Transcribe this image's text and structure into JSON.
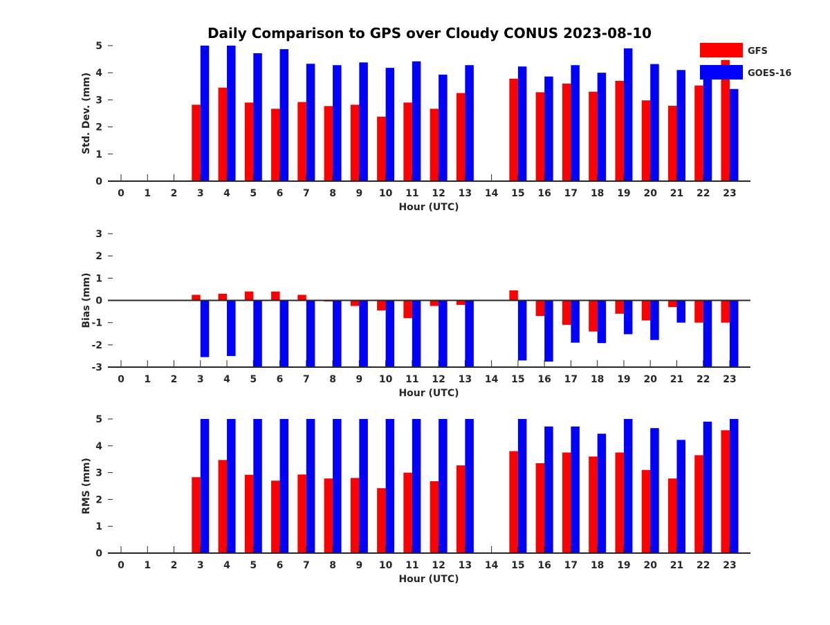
{
  "title": "Daily Comparison to GPS over Cloudy CONUS 2023-08-10",
  "legend": {
    "placement": "top-right",
    "entries": [
      {
        "name": "GFS",
        "color": "#ff0000"
      },
      {
        "name": "GOES-16",
        "color": "#0000ff"
      }
    ]
  },
  "chart_data": [
    {
      "type": "bar",
      "xlabel": "Hour (UTC)",
      "ylabel": "Std. Dev. (mm)",
      "ylim": [
        0,
        5
      ],
      "yticks": [
        0,
        1,
        2,
        3,
        4,
        5
      ],
      "categories": [
        "0",
        "1",
        "2",
        "3",
        "4",
        "5",
        "6",
        "7",
        "8",
        "9",
        "10",
        "11",
        "12",
        "13",
        "14",
        "15",
        "16",
        "17",
        "18",
        "19",
        "20",
        "21",
        "22",
        "23"
      ],
      "series": [
        {
          "name": "GFS",
          "color": "#ff0000",
          "values": [
            null,
            null,
            null,
            2.82,
            3.45,
            2.9,
            2.67,
            2.92,
            2.77,
            2.82,
            2.38,
            2.9,
            2.67,
            3.25,
            null,
            3.78,
            3.28,
            3.6,
            3.3,
            3.7,
            2.98,
            2.78,
            3.53,
            4.47
          ]
        },
        {
          "name": "GOES-16",
          "color": "#0000ff",
          "values": [
            null,
            null,
            null,
            5.0,
            5.0,
            4.72,
            4.87,
            4.33,
            4.28,
            4.38,
            4.18,
            4.42,
            3.93,
            4.28,
            null,
            4.23,
            3.86,
            4.28,
            4.0,
            4.9,
            4.32,
            4.1,
            3.9,
            3.4
          ]
        }
      ]
    },
    {
      "type": "bar",
      "xlabel": "Hour (UTC)",
      "ylabel": "Bias (mm)",
      "ylim": [
        -3,
        3
      ],
      "yticks": [
        -3,
        -2,
        -1,
        0,
        1,
        2,
        3
      ],
      "categories": [
        "0",
        "1",
        "2",
        "3",
        "4",
        "5",
        "6",
        "7",
        "8",
        "9",
        "10",
        "11",
        "12",
        "13",
        "14",
        "15",
        "16",
        "17",
        "18",
        "19",
        "20",
        "21",
        "22",
        "23"
      ],
      "series": [
        {
          "name": "GFS",
          "color": "#ff0000",
          "values": [
            null,
            null,
            null,
            0.25,
            0.3,
            0.4,
            0.4,
            0.25,
            -0.05,
            -0.25,
            -0.45,
            -0.8,
            -0.25,
            -0.2,
            null,
            0.45,
            -0.7,
            -1.1,
            -1.4,
            -0.6,
            -0.9,
            -0.3,
            -1.0,
            -1.0
          ]
        },
        {
          "name": "GOES-16",
          "color": "#0000ff",
          "values": [
            null,
            null,
            null,
            -2.55,
            -2.5,
            -3.0,
            -3.0,
            -3.0,
            -3.0,
            -3.0,
            -3.0,
            -3.0,
            -3.0,
            -3.0,
            null,
            -2.7,
            -2.75,
            -1.9,
            -1.92,
            -1.52,
            -1.78,
            -1.0,
            -2.98,
            -3.0
          ]
        }
      ]
    },
    {
      "type": "bar",
      "xlabel": "Hour (UTC)",
      "ylabel": "RMS (mm)",
      "ylim": [
        0,
        5
      ],
      "yticks": [
        0,
        1,
        2,
        3,
        4,
        5
      ],
      "categories": [
        "0",
        "1",
        "2",
        "3",
        "4",
        "5",
        "6",
        "7",
        "8",
        "9",
        "10",
        "11",
        "12",
        "13",
        "14",
        "15",
        "16",
        "17",
        "18",
        "19",
        "20",
        "21",
        "22",
        "23"
      ],
      "series": [
        {
          "name": "GFS",
          "color": "#ff0000",
          "values": [
            null,
            null,
            null,
            2.83,
            3.47,
            2.92,
            2.7,
            2.93,
            2.78,
            2.8,
            2.42,
            3.0,
            2.68,
            3.27,
            null,
            3.8,
            3.35,
            3.75,
            3.6,
            3.75,
            3.1,
            2.78,
            3.65,
            4.58
          ]
        },
        {
          "name": "GOES-16",
          "color": "#0000ff",
          "values": [
            null,
            null,
            null,
            5.0,
            5.0,
            5.0,
            5.0,
            5.0,
            5.0,
            5.0,
            5.0,
            5.0,
            5.0,
            5.0,
            null,
            5.0,
            4.72,
            4.72,
            4.45,
            5.0,
            4.66,
            4.22,
            4.9,
            5.0
          ]
        }
      ]
    }
  ]
}
